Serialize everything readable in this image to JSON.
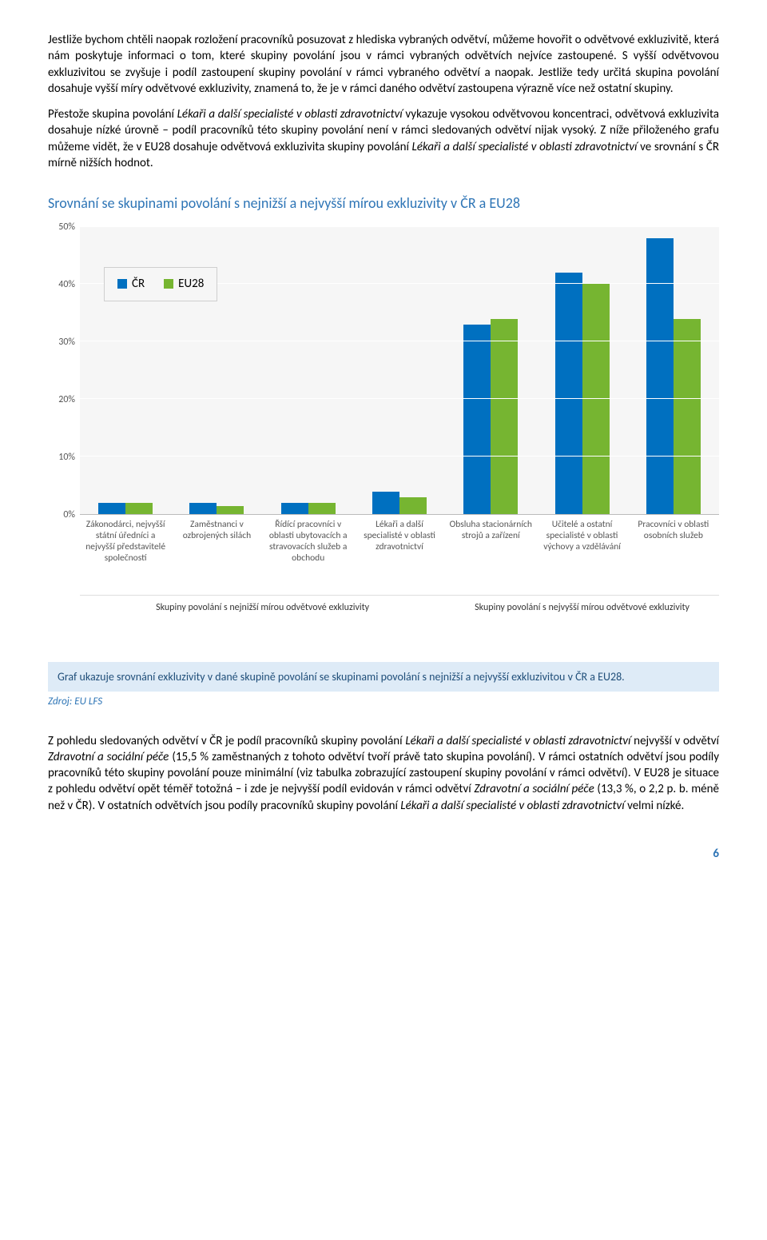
{
  "paragraphs": {
    "p1": "Jestliže bychom chtěli naopak rozložení pracovníků posuzovat z hlediska vybraných odvětví, můžeme hovořit o odvětvové exkluzivitě, která nám poskytuje informaci o tom, které skupiny povolání jsou v rámci vybraných odvětvích nejvíce zastoupené. S vyšší odvětvovou exkluzivitou se zvyšuje i podíl zastoupení skupiny povolání v rámci vybraného odvětví a naopak. Jestliže tedy určitá skupina povolání dosahuje vyšší míry odvětvové exkluzivity, znamená to, že je v rámci daného odvětví zastoupena výrazně více než ostatní skupiny.",
    "p2_a": "Přestože skupina povolání ",
    "p2_b": "Lékaři a další specialisté v oblasti zdravotnictví",
    "p2_c": " vykazuje vysokou odvětvovou koncentraci, odvětvová exkluzivita dosahuje nízké úrovně – podíl pracovníků této skupiny povolání není v rámci sledovaných odvětví nijak vysoký. Z níže přiloženého grafu můžeme vidět, že v EU28 dosahuje odvětvová exkluzivita skupiny povolání ",
    "p2_d": "Lékaři a další specialisté v oblasti zdravotnictví",
    "p2_e": " ve srovnání s ČR mírně nižších hodnot.",
    "p3_a": "Z pohledu sledovaných odvětví v ČR je podíl pracovníků skupiny povolání ",
    "p3_b": "Lékaři a další specialisté v oblasti zdravotnictví",
    "p3_c": " nejvyšší v odvětví ",
    "p3_d": "Zdravotní a sociální péče",
    "p3_e": " (15,5 % zaměstnaných z tohoto odvětví tvoří právě tato skupina povolání). V rámci ostatních odvětví jsou podíly pracovníků této skupiny povolání pouze minimální (viz tabulka zobrazující zastoupení skupiny povolání v rámci odvětví). V EU28 je situace z pohledu odvětví opět téměř totožná – i zde je nejvyšší podíl evidován v rámci odvětví ",
    "p3_f": "Zdravotní a sociální péče",
    "p3_g": " (13,3 %, o 2,2 p. b. méně než v ČR). V ostatních odvětvích jsou podíly pracovníků skupiny povolání ",
    "p3_h": "Lékaři a další specialisté v oblasti zdravotnictví",
    "p3_i": " velmi nízké."
  },
  "section_heading": "Srovnání se skupinami povolání s nejnižší a nejvyšší mírou exkluzivity v ČR a EU28",
  "chart": {
    "type": "bar",
    "ylim": [
      0,
      50
    ],
    "ytick_step": 10,
    "yticks": [
      "0%",
      "10%",
      "20%",
      "30%",
      "40%",
      "50%"
    ],
    "background_color": "#f6f6f6",
    "grid_color": "#ffffff",
    "series": [
      {
        "name": "ČR",
        "color": "#0070c0"
      },
      {
        "name": "EU28",
        "color": "#76b531"
      }
    ],
    "categories": [
      {
        "label": "Zákonodárci, nejvyšší státní úředníci a nejvyšší představitelé společností",
        "cr": 2.0,
        "eu": 2.0
      },
      {
        "label": "Zaměstnanci v ozbrojených silách",
        "cr": 2.0,
        "eu": 1.5
      },
      {
        "label": "Řídící pracovníci v oblasti ubytovacích a stravovacích služeb a obchodu",
        "cr": 2.0,
        "eu": 2.0
      },
      {
        "label": "Lékaři a další specialisté v oblasti zdravotnictví",
        "cr": 4.0,
        "eu": 3.0
      },
      {
        "label": "Obsluha stacionárních strojů a zařízení",
        "cr": 33.0,
        "eu": 34.0
      },
      {
        "label": "Učitelé a ostatní specialisté v oblasti výchovy a vzdělávání",
        "cr": 42.0,
        "eu": 40.0
      },
      {
        "label": "Pracovníci v oblasti osobních služeb",
        "cr": 48.0,
        "eu": 34.0
      }
    ],
    "group_labels": [
      {
        "text": "Skupiny povolání s nejnižší mírou odvětvové exkluzivity",
        "span": 4
      },
      {
        "text": "Skupiny povolání s nejvyšší mírou odvětvové exkluzivity",
        "span": 3
      }
    ]
  },
  "caption": "Graf ukazuje srovnání exkluzivity v dané skupině povolání se skupinami povolání s nejnižší a nejvyšší exkluzivitou v ČR a EU28.",
  "source": "Zdroj: EU LFS",
  "page_number": "6"
}
